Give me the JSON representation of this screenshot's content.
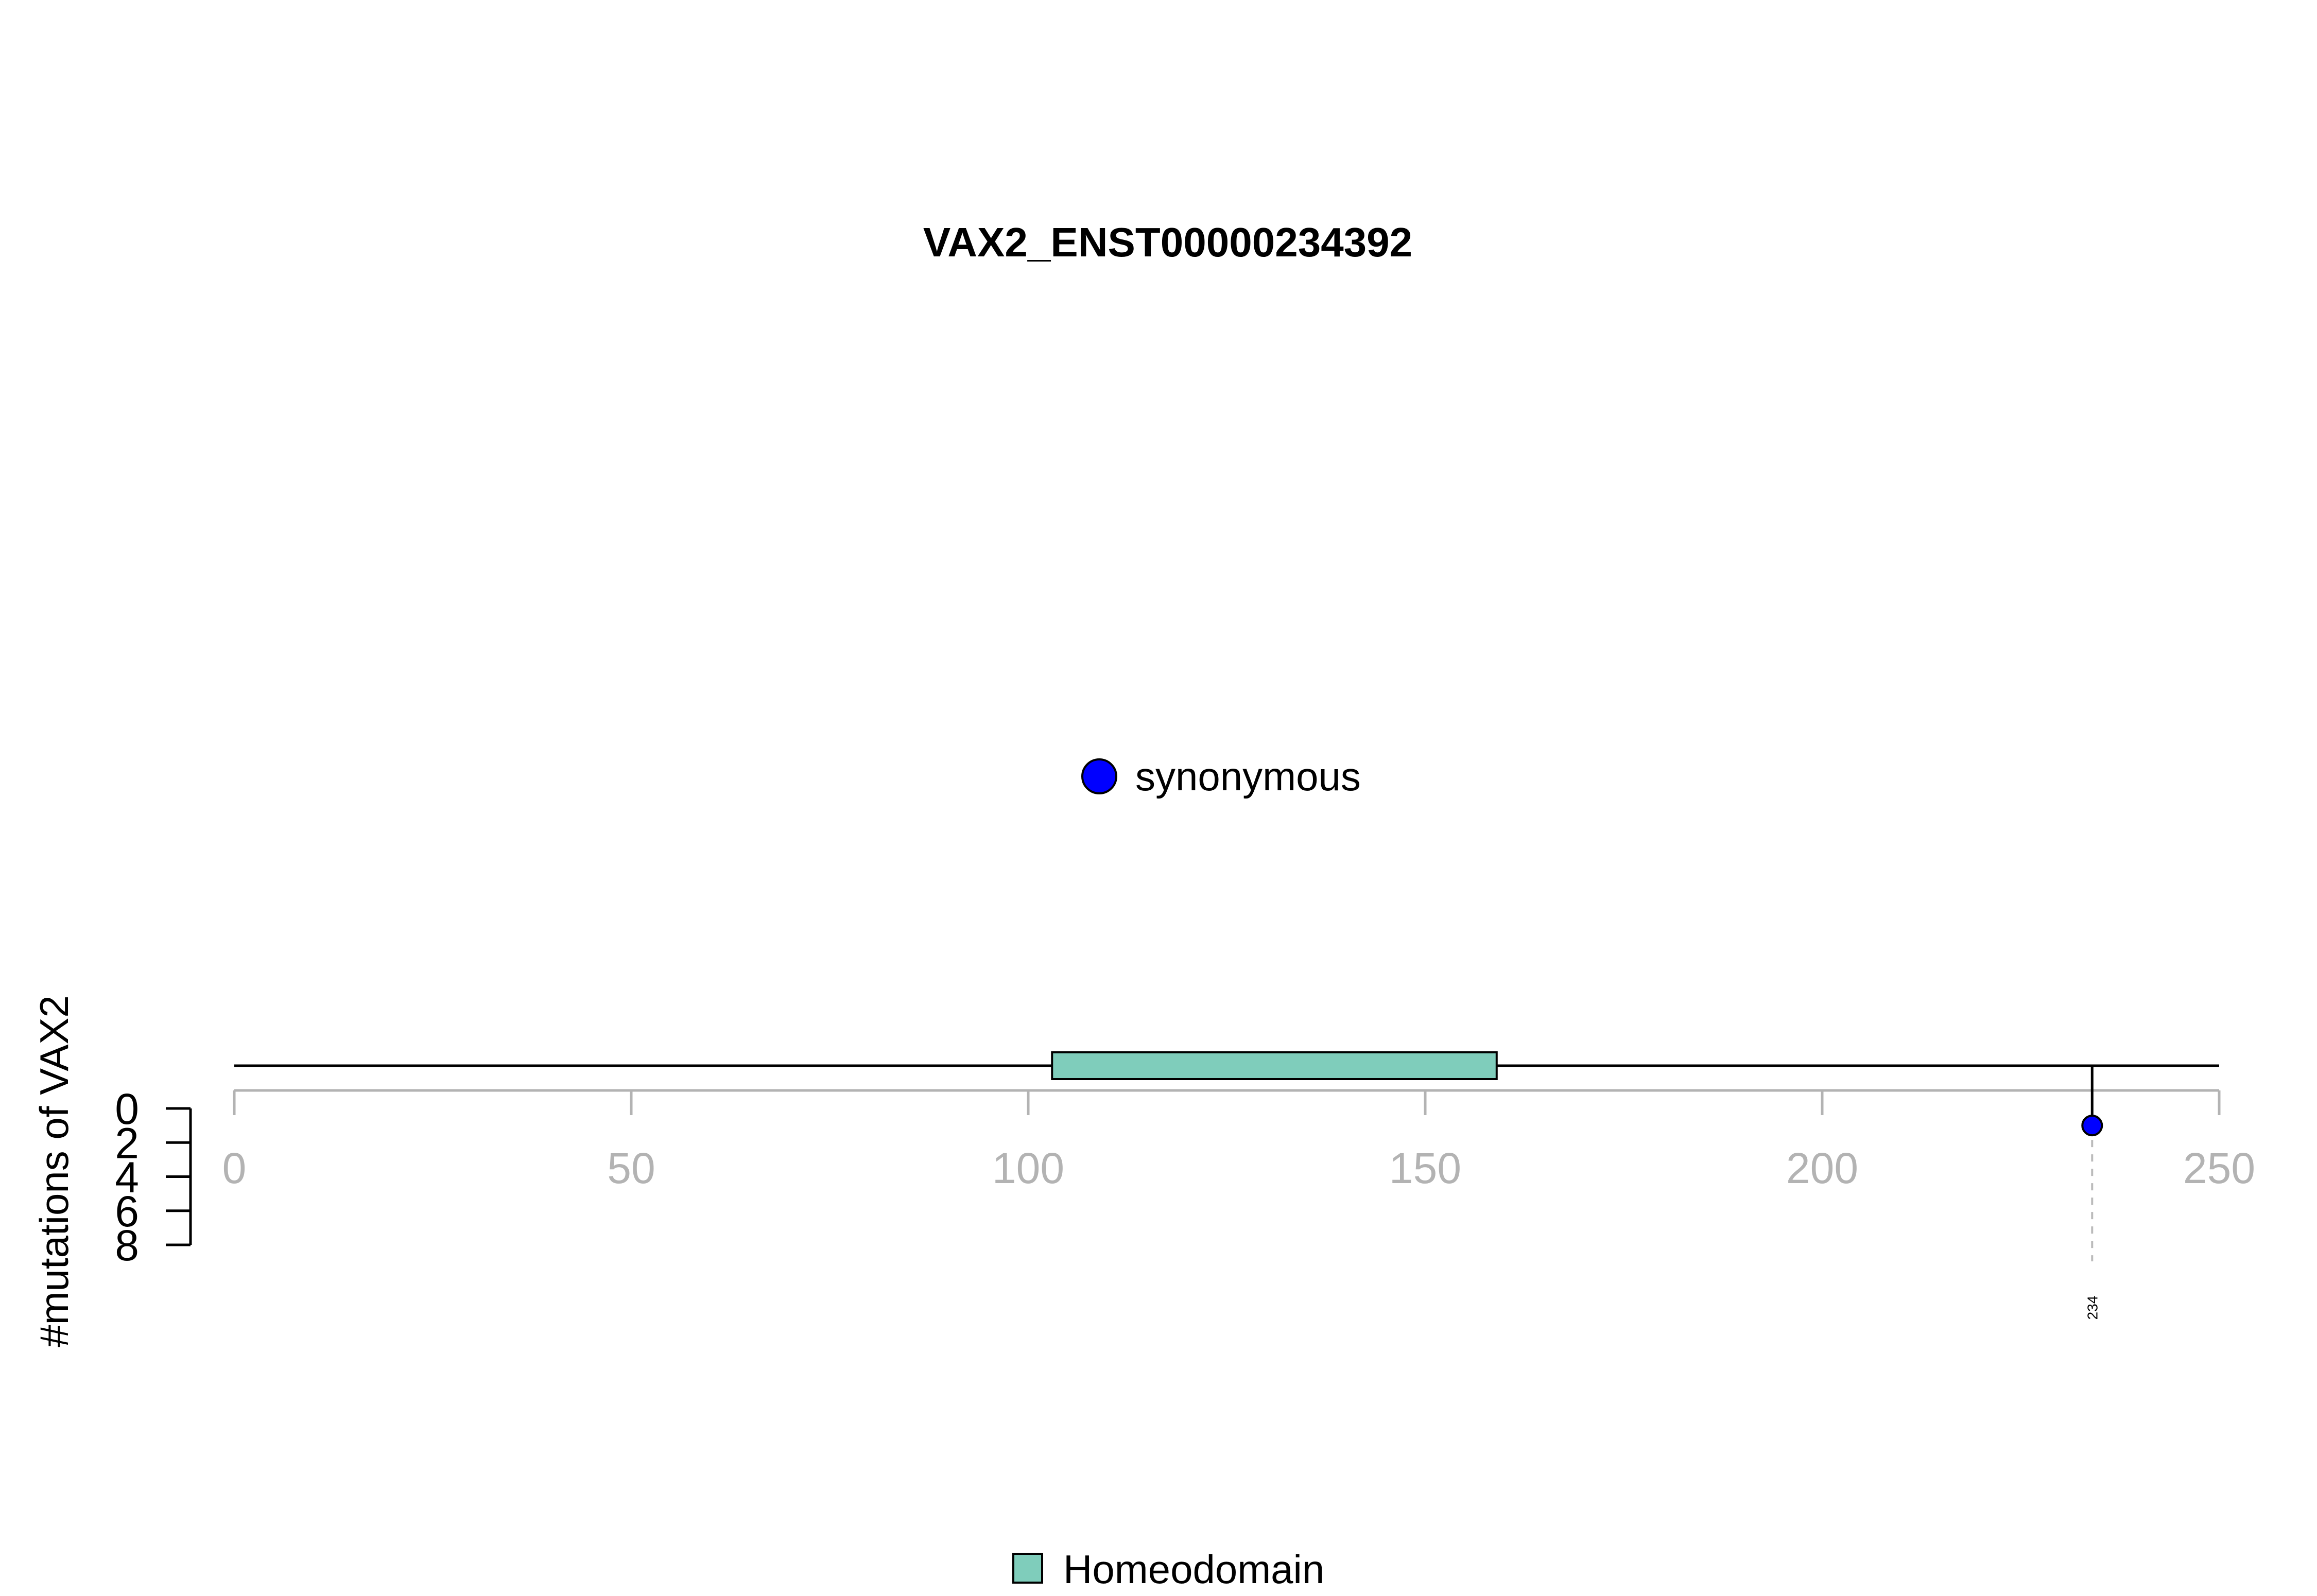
{
  "chart_data": {
    "type": "lollipop",
    "title": "VAX2_ENST00000234392",
    "ylabel": "#mutations of VAX2",
    "xlim": [
      0,
      250
    ],
    "x_ticks": [
      0,
      50,
      100,
      150,
      200,
      250
    ],
    "ylim": [
      0,
      8
    ],
    "y_ticks": [
      0,
      2,
      4,
      6,
      8
    ],
    "mutation_legend": [
      {
        "label": "synonymous",
        "color": "#0000ff"
      }
    ],
    "mutations": [
      {
        "position": 234,
        "count": 1,
        "type": "synonymous",
        "label": "234",
        "color": "#0000ff"
      }
    ],
    "domains": [
      {
        "name": "Homeodomain",
        "start": 103,
        "end": 159,
        "color": "#7fcdbb"
      }
    ],
    "domain_legend": [
      {
        "label": "Homeodomain",
        "color": "#7fcdbb"
      }
    ],
    "axis_color": "#b3b3b3",
    "grid": false
  }
}
